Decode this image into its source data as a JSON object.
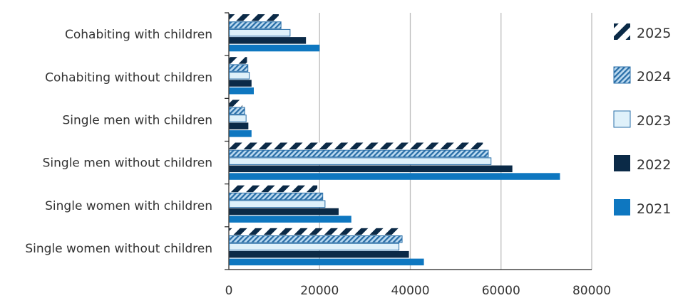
{
  "chart_data": {
    "type": "bar",
    "orientation": "horizontal",
    "categories": [
      "Cohabiting with children",
      "Cohabiting without children",
      "Single men with children",
      "Single men without children",
      "Single women with children",
      "Single women without children"
    ],
    "series": [
      {
        "name": "2025",
        "values": [
          11000,
          4000,
          3000,
          56000,
          19500,
          37500
        ],
        "color": "#0b2a47",
        "pattern": "dark-diagonal-dashes"
      },
      {
        "name": "2024",
        "values": [
          11500,
          4200,
          3500,
          57200,
          20700,
          38200
        ],
        "color": "#2a6fa8",
        "pattern": "diagonal-hatch"
      },
      {
        "name": "2023",
        "values": [
          13500,
          4500,
          3800,
          57800,
          21200,
          37500
        ],
        "color": "#dff1fa",
        "pattern": "light-fill-outline"
      },
      {
        "name": "2022",
        "values": [
          17000,
          5000,
          4300,
          62500,
          24200,
          39700
        ],
        "color": "#0b2a47",
        "pattern": "solid"
      },
      {
        "name": "2021",
        "values": [
          20000,
          5500,
          5000,
          73000,
          27000,
          43000
        ],
        "color": "#0e77c0",
        "pattern": "solid"
      }
    ],
    "xlim": [
      0,
      80000
    ],
    "xticks": [
      "0",
      "20000",
      "40000",
      "60000",
      "80000"
    ],
    "grid": "vertical",
    "legend_position": "right"
  }
}
